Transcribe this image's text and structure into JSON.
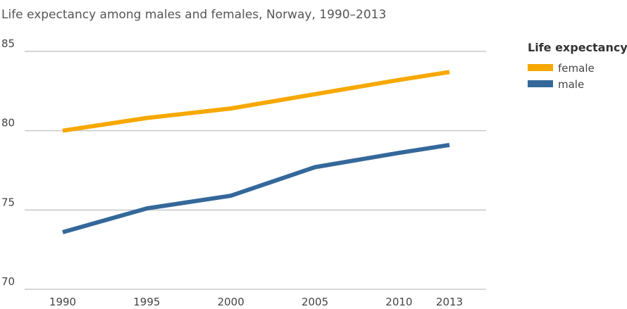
{
  "chart_data": {
    "type": "line",
    "title": "Life expectancy among males and females, Norway, 1990–2013",
    "xlabel": "",
    "ylabel": "",
    "categories": [
      "1990",
      "1995",
      "2000",
      "2005",
      "2010",
      "2013"
    ],
    "x": [
      1990,
      1995,
      2000,
      2005,
      2010,
      2013
    ],
    "ylim": [
      70,
      85
    ],
    "yticks": [
      "70",
      "75",
      "80",
      "85"
    ],
    "grid": true,
    "legend": {
      "title": "Life expectancy",
      "position": "top-right"
    },
    "series": [
      {
        "name": "female",
        "color": "#F7A800",
        "values": [
          80.0,
          80.8,
          81.4,
          82.3,
          83.2,
          83.7
        ]
      },
      {
        "name": "male",
        "color": "#34689A",
        "values": [
          73.6,
          75.1,
          75.9,
          77.7,
          78.6,
          79.1
        ]
      }
    ]
  }
}
